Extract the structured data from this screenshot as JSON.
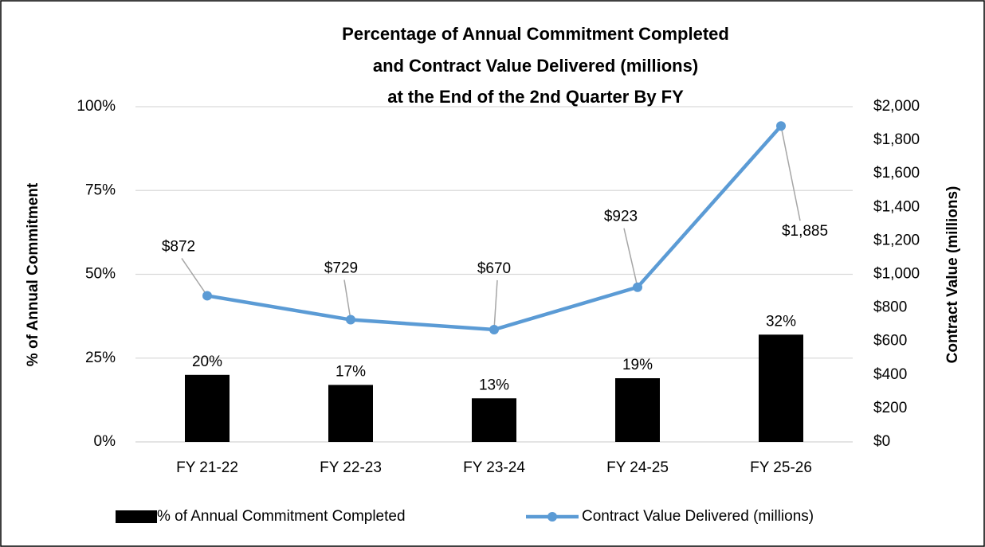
{
  "chart_data": {
    "type": "bar_line",
    "title": [
      "Percentage of Annual Commitment Completed",
      "and Contract Value Delivered (millions)",
      "at the End of the 2nd Quarter By FY"
    ],
    "ylabel": "% of Annual Commitment",
    "y2label": "Contract Value (millions)",
    "categories": [
      "FY 21-22",
      "FY 22-23",
      "FY 23-24",
      "FY 24-25",
      "FY 25-26"
    ],
    "series": [
      {
        "name": "% of Annual Commitment Completed",
        "type": "bar",
        "color": "#000000",
        "values": [
          20,
          17,
          13,
          19,
          32
        ],
        "value_labels": [
          "20%",
          "17%",
          "13%",
          "19%",
          "32%"
        ]
      },
      {
        "name": "Contract Value Delivered (millions)",
        "type": "line",
        "axis": "y2",
        "color": "#5b9bd5",
        "values": [
          872,
          729,
          670,
          923,
          1885
        ],
        "value_labels": [
          "$872",
          "$729",
          "$670",
          "$923",
          "$1,885"
        ]
      }
    ],
    "ylim": [
      0,
      100
    ],
    "yticks": [
      {
        "value": 0,
        "label": "0%"
      },
      {
        "value": 25,
        "label": "25%"
      },
      {
        "value": 50,
        "label": "50%"
      },
      {
        "value": 75,
        "label": "75%"
      },
      {
        "value": 100,
        "label": "100%"
      }
    ],
    "y2lim": [
      0,
      2000
    ],
    "y2ticks": [
      {
        "value": 0,
        "label": "$0"
      },
      {
        "value": 200,
        "label": "$200"
      },
      {
        "value": 400,
        "label": "$400"
      },
      {
        "value": 600,
        "label": "$600"
      },
      {
        "value": 800,
        "label": "$800"
      },
      {
        "value": 1000,
        "label": "$1,000"
      },
      {
        "value": 1200,
        "label": "$1,200"
      },
      {
        "value": 1400,
        "label": "$1,400"
      },
      {
        "value": 1600,
        "label": "$1,600"
      },
      {
        "value": 1800,
        "label": "$1,800"
      },
      {
        "value": 2000,
        "label": "$2,000"
      }
    ],
    "grid": true,
    "legend": "bottom"
  }
}
